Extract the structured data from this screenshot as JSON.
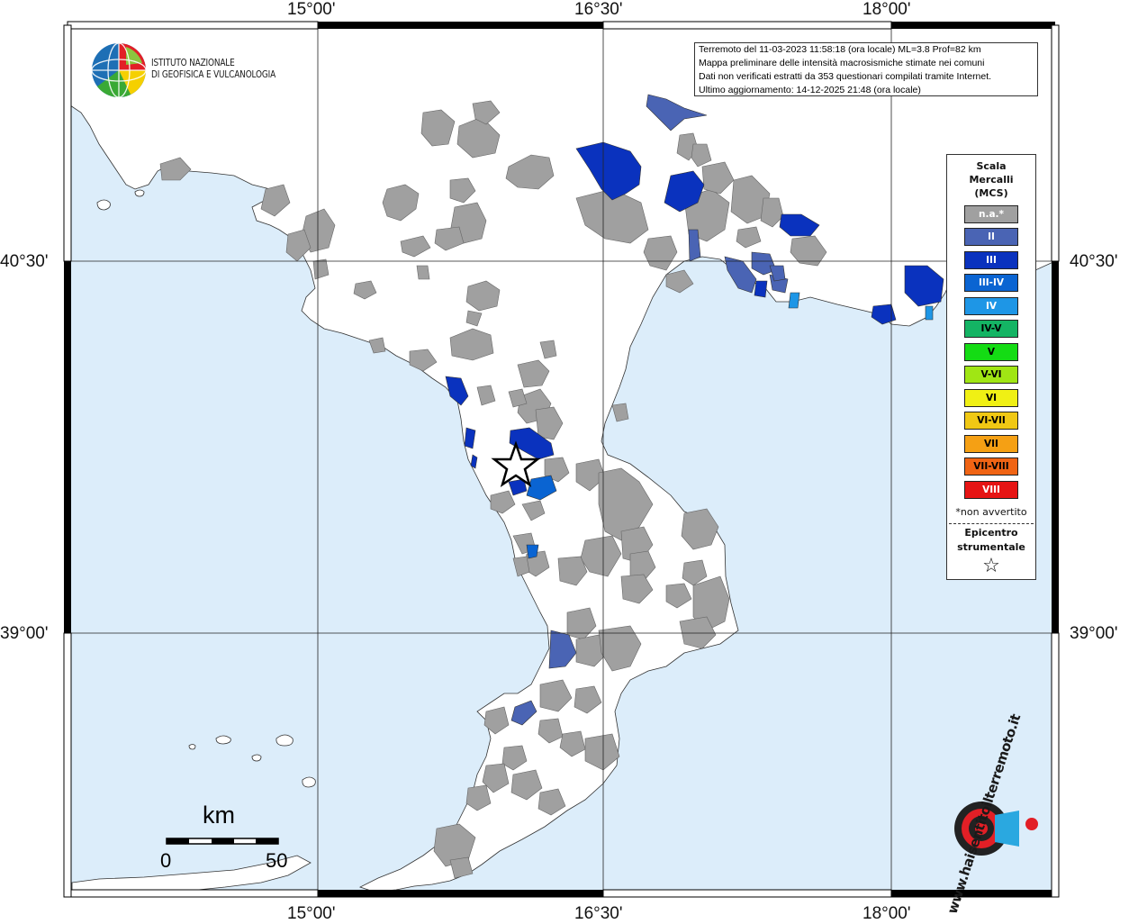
{
  "coords": {
    "top": [
      "15°00'",
      "16°30'",
      "18°00'"
    ],
    "bottom": [
      "15°00'",
      "16°30'",
      "18°00'"
    ],
    "left": [
      "40°30'",
      "39°00'"
    ],
    "right": [
      "40°30'",
      "39°00'"
    ]
  },
  "info": {
    "line1": "Terremoto del 11-03-2023 11:58:18 (ora locale) ML=3.8 Prof=82 km",
    "line2": "Mappa preliminare delle intensità macrosismiche stimate nei comuni",
    "line3": "Dati non verificati estratti da 353 questionari compilati tramite Internet.",
    "line4": "Ultimo aggiornamento: 14-12-2025 21:48 (ora locale)"
  },
  "logo": {
    "line1": "ISTITUTO NAZIONALE",
    "line2": "DI GEOFISICA E VULCANOLOGIA",
    "brand": "www.haisentitoilterremoto.it"
  },
  "legend": {
    "title1": "Scala",
    "title2": "Mercalli",
    "title3": "(MCS)",
    "items": [
      {
        "label": "n.a.*",
        "color": "#a0a0a0",
        "text": "#ffffff"
      },
      {
        "label": "II",
        "color": "#4a64b4",
        "text": "#ffffff"
      },
      {
        "label": "III",
        "color": "#0a32be",
        "text": "#ffffff"
      },
      {
        "label": "III-IV",
        "color": "#0a64d2",
        "text": "#ffffff"
      },
      {
        "label": "IV",
        "color": "#1e96e6",
        "text": "#ffffff"
      },
      {
        "label": "IV-V",
        "color": "#14b464",
        "text": "#000000"
      },
      {
        "label": "V",
        "color": "#14dc14",
        "text": "#000000"
      },
      {
        "label": "V-VI",
        "color": "#a0e614",
        "text": "#000000"
      },
      {
        "label": "VI",
        "color": "#f0f014",
        "text": "#000000"
      },
      {
        "label": "VI-VII",
        "color": "#f0c814",
        "text": "#000000"
      },
      {
        "label": "VII",
        "color": "#f5a014",
        "text": "#000000"
      },
      {
        "label": "VII-VIII",
        "color": "#f06414",
        "text": "#000000"
      },
      {
        "label": "VIII",
        "color": "#e61414",
        "text": "#ffffff"
      }
    ],
    "note": "*non avvertito",
    "epi1": "Epicentro",
    "epi2": "strumentale",
    "star": "☆"
  },
  "scale": {
    "unit": "km",
    "min": "0",
    "max": "50"
  },
  "colors": {
    "sea": "#dcedfa",
    "land": "#ffffff",
    "na": "#a0a0a0",
    "ii": "#4a64b4",
    "iii": "#0a32be",
    "iiiiv": "#0a64d2",
    "iv": "#1e96e6"
  }
}
